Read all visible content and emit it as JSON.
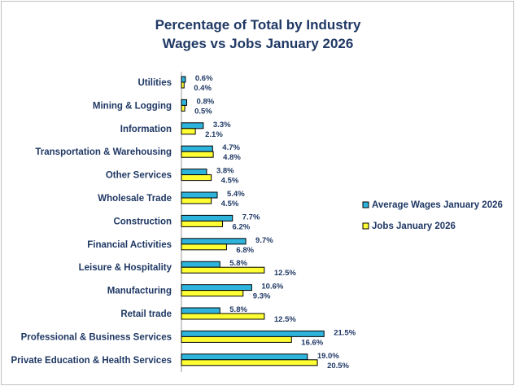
{
  "chart_data": {
    "type": "bar",
    "orientation": "horizontal",
    "title": "Percentage of Total by Industry",
    "subtitle": "Wages vs Jobs January 2026",
    "categories": [
      "Utilities",
      "Mining & Logging",
      "Information",
      "Transportation & Warehousing",
      "Other Services",
      "Wholesale Trade",
      "Construction",
      "Financial Activities",
      "Leisure & Hospitality",
      "Manufacturing",
      "Retail trade",
      "Professional & Business Services",
      "Private Education & Health Services"
    ],
    "series": [
      {
        "name": "Average Wages January 2026",
        "color": "#2eb4dc",
        "values": [
          0.6,
          0.8,
          3.3,
          4.7,
          3.8,
          5.4,
          7.7,
          9.7,
          5.8,
          10.6,
          5.8,
          21.5,
          19.0
        ],
        "labels": [
          "0.6%",
          "0.8%",
          "3.3%",
          "4.7%",
          "3.8%",
          "5.4%",
          "7.7%",
          "9.7%",
          "5.8%",
          "10.6%",
          "5.8%",
          "21.5%",
          "19.0%"
        ]
      },
      {
        "name": "Jobs January 2026",
        "color": "#ffff33",
        "values": [
          0.4,
          0.5,
          2.1,
          4.8,
          4.5,
          4.5,
          6.2,
          6.8,
          12.5,
          9.3,
          12.5,
          16.6,
          20.5
        ],
        "labels": [
          "0.4%",
          "0.5%",
          "2.1%",
          "4.8%",
          "4.5%",
          "4.5%",
          "6.2%",
          "6.8%",
          "12.5%",
          "9.3%",
          "12.5%",
          "16.6%",
          "20.5%"
        ]
      }
    ],
    "xlim": [
      0,
      25
    ],
    "legend_position": "right",
    "grid": false
  }
}
